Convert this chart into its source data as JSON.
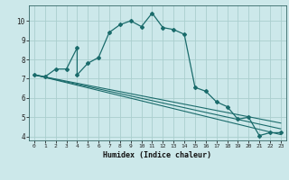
{
  "xlabel": "Humidex (Indice chaleur)",
  "ylabel": "",
  "background_color": "#cce8ea",
  "grid_color": "#aacece",
  "line_color": "#1a6b6b",
  "xlim": [
    -0.5,
    23.5
  ],
  "ylim": [
    3.8,
    10.8
  ],
  "yticks": [
    4,
    5,
    6,
    7,
    8,
    9,
    10
  ],
  "xticks": [
    0,
    1,
    2,
    3,
    4,
    5,
    6,
    7,
    8,
    9,
    10,
    11,
    12,
    13,
    14,
    15,
    16,
    17,
    18,
    19,
    20,
    21,
    22,
    23
  ],
  "curve1_x": [
    0,
    1,
    2,
    3,
    4,
    4,
    5,
    6,
    7,
    8,
    9,
    10,
    11,
    12,
    13,
    14,
    15,
    16,
    17,
    18,
    19,
    20,
    21,
    22,
    23
  ],
  "curve1_y": [
    7.2,
    7.1,
    7.5,
    7.5,
    8.6,
    7.2,
    7.8,
    8.1,
    9.4,
    9.8,
    10.0,
    9.7,
    10.4,
    9.65,
    9.55,
    9.3,
    6.55,
    6.35,
    5.8,
    5.55,
    4.9,
    5.0,
    4.05,
    4.2,
    4.2
  ],
  "line2_x": [
    0,
    23
  ],
  "line2_y": [
    7.2,
    4.1
  ],
  "line3_x": [
    0,
    23
  ],
  "line3_y": [
    7.2,
    4.4
  ],
  "line4_x": [
    0,
    23
  ],
  "line4_y": [
    7.2,
    4.7
  ]
}
